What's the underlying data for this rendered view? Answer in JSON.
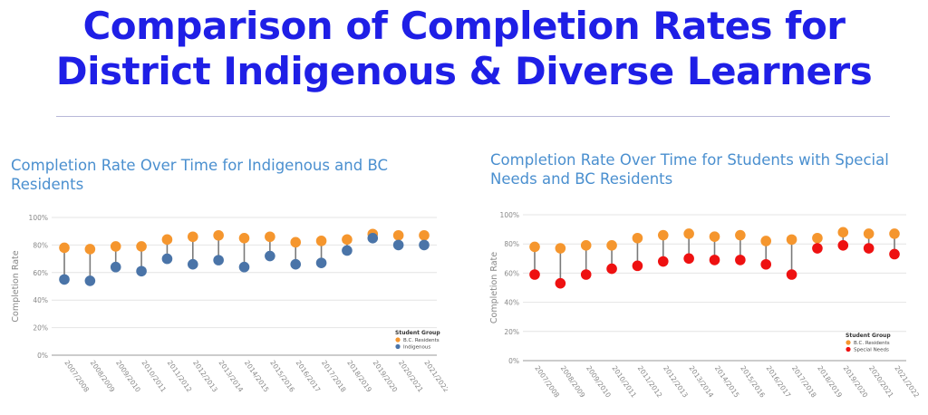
{
  "title_line1": "Comparison of Completion Rates for",
  "title_line2": "District Indigenous & Diverse Learners",
  "colors": {
    "title": "#1f1fe6",
    "chart_title": "#4a8fcf",
    "bc_residents": "#f5962e",
    "indigenous": "#4a74a8",
    "special_needs": "#ee1111",
    "connector": "#7a7a7a"
  },
  "chart_data": [
    {
      "type": "scatter",
      "title": "Completion Rate Over Time for Indigenous and BC Residents",
      "ylabel": "Completion Rate",
      "ylim": [
        0,
        100
      ],
      "yticks": [
        "0%",
        "20%",
        "40%",
        "60%",
        "80%",
        "100%"
      ],
      "categories": [
        "2007/2008",
        "2008/2009",
        "2009/2010",
        "2010/2011",
        "2011/2012",
        "2012/2013",
        "2013/2014",
        "2014/2015",
        "2015/2016",
        "2016/2017",
        "2017/2018",
        "2018/2019",
        "2019/2020",
        "2020/2021",
        "2021/2022"
      ],
      "legend_title": "Student Group",
      "legend_position": "bottom-right",
      "series": [
        {
          "name": "B.C. Residents",
          "values": [
            78,
            77,
            79,
            79,
            84,
            86,
            87,
            85,
            86,
            82,
            83,
            84,
            88,
            87,
            87
          ]
        },
        {
          "name": "Indigenous",
          "values": [
            55,
            54,
            64,
            61,
            70,
            66,
            69,
            64,
            72,
            66,
            67,
            76,
            85,
            80,
            80
          ]
        }
      ]
    },
    {
      "type": "scatter",
      "title": "Completion Rate Over Time for Students with Special Needs and BC Residents",
      "ylabel": "Completion Rate",
      "ylim": [
        0,
        100
      ],
      "yticks": [
        "0%",
        "20%",
        "40%",
        "60%",
        "80%",
        "100%"
      ],
      "categories": [
        "2007/2008",
        "2008/2009",
        "2009/2010",
        "2010/2011",
        "2011/2012",
        "2012/2013",
        "2013/2014",
        "2014/2015",
        "2015/2016",
        "2016/2017",
        "2017/2018",
        "2018/2019",
        "2019/2020",
        "2020/2021",
        "2021/2022"
      ],
      "legend_title": "Student Group",
      "legend_position": "bottom-right",
      "series": [
        {
          "name": "B.C. Residents",
          "values": [
            78,
            77,
            79,
            79,
            84,
            86,
            87,
            85,
            86,
            82,
            83,
            84,
            88,
            87,
            87
          ]
        },
        {
          "name": "Special Needs",
          "values": [
            59,
            53,
            59,
            63,
            65,
            68,
            70,
            69,
            69,
            66,
            59,
            77,
            79,
            77,
            73
          ]
        }
      ]
    }
  ]
}
